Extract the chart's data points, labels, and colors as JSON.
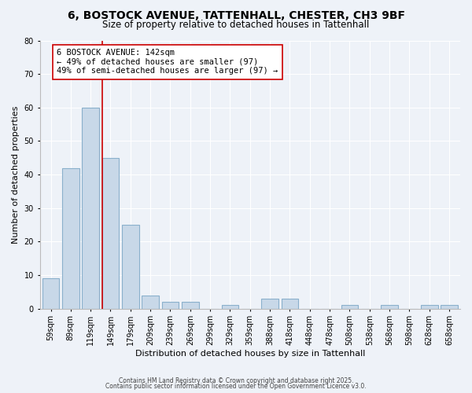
{
  "title": "6, BOSTOCK AVENUE, TATTENHALL, CHESTER, CH3 9BF",
  "subtitle": "Size of property relative to detached houses in Tattenhall",
  "bar_labels": [
    "59sqm",
    "89sqm",
    "119sqm",
    "149sqm",
    "179sqm",
    "209sqm",
    "239sqm",
    "269sqm",
    "299sqm",
    "329sqm",
    "359sqm",
    "388sqm",
    "418sqm",
    "448sqm",
    "478sqm",
    "508sqm",
    "538sqm",
    "568sqm",
    "598sqm",
    "628sqm",
    "658sqm"
  ],
  "bar_values": [
    9,
    42,
    60,
    45,
    25,
    4,
    2,
    2,
    0,
    1,
    0,
    3,
    3,
    0,
    0,
    1,
    0,
    1,
    0,
    1,
    1
  ],
  "bar_color": "#c8d8e8",
  "bar_edge_color": "#8ab0cc",
  "xlabel": "Distribution of detached houses by size in Tattenhall",
  "ylabel": "Number of detached properties",
  "ylim": [
    0,
    80
  ],
  "yticks": [
    0,
    10,
    20,
    30,
    40,
    50,
    60,
    70,
    80
  ],
  "vline_color": "#cc0000",
  "vline_pos": 2.58,
  "annotation_title": "6 BOSTOCK AVENUE: 142sqm",
  "annotation_line1": "← 49% of detached houses are smaller (97)",
  "annotation_line2": "49% of semi-detached houses are larger (97) →",
  "annotation_box_facecolor": "#ffffff",
  "annotation_box_edgecolor": "#cc0000",
  "footer_line1": "Contains HM Land Registry data © Crown copyright and database right 2025.",
  "footer_line2": "Contains public sector information licensed under the Open Government Licence v3.0.",
  "background_color": "#eef2f8",
  "grid_color": "#ffffff",
  "title_fontsize": 10,
  "subtitle_fontsize": 8.5,
  "axis_label_fontsize": 8,
  "tick_fontsize": 7,
  "annotation_fontsize": 7.5,
  "footer_fontsize": 5.5
}
